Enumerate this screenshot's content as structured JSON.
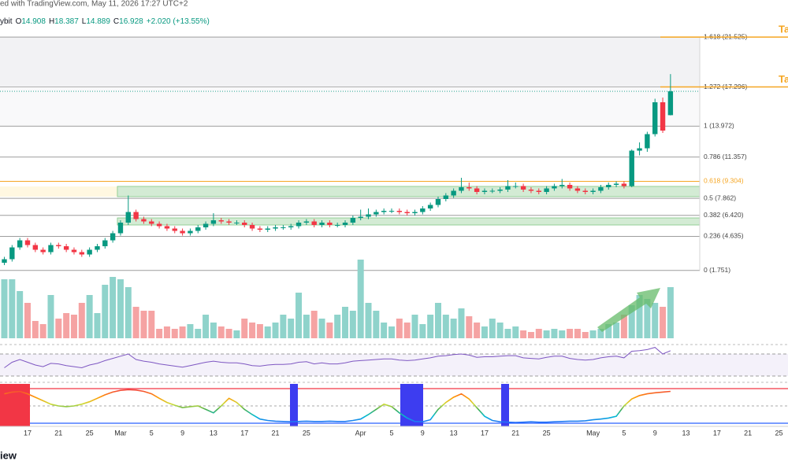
{
  "header": {
    "line1": "ed with TradingView.com, May 11, 2026 17:27 UTC+2",
    "exchange": "ybit",
    "ohlc_letters": [
      "O",
      "H",
      "L",
      "C"
    ],
    "change": "+2.020 (+13.55%)"
  },
  "chart_data": {
    "type": "candlestick",
    "categories": [
      null,
      null,
      null,
      "17",
      null,
      null,
      null,
      "21",
      null,
      null,
      null,
      "25",
      null,
      null,
      null,
      "Mar",
      null,
      null,
      null,
      "5",
      null,
      null,
      null,
      "9",
      null,
      null,
      null,
      "13",
      null,
      null,
      null,
      "17",
      null,
      null,
      null,
      "21",
      null,
      null,
      null,
      "25",
      null,
      null,
      null,
      null,
      null,
      null,
      "Apr",
      null,
      null,
      null,
      "5",
      null,
      null,
      null,
      "9",
      null,
      null,
      null,
      "13",
      null,
      null,
      null,
      "17",
      null,
      null,
      null,
      "21",
      null,
      null,
      null,
      "25",
      null,
      null,
      null,
      null,
      null,
      "May",
      null,
      null,
      null,
      "5",
      null,
      null,
      null,
      "9",
      null,
      null,
      null,
      "13",
      null,
      null,
      null,
      "17",
      null,
      null,
      null,
      "21",
      null,
      null,
      null,
      "25"
    ],
    "ohlc": [
      [
        2.4,
        2.9,
        2.2,
        2.7
      ],
      [
        2.7,
        3.9,
        2.5,
        3.7
      ],
      [
        3.7,
        4.5,
        3.5,
        4.3
      ],
      [
        4.3,
        4.5,
        3.7,
        3.9
      ],
      [
        3.9,
        4.1,
        3.3,
        3.5
      ],
      [
        3.5,
        3.7,
        3.1,
        3.3
      ],
      [
        3.3,
        4.1,
        3.1,
        3.9
      ],
      [
        3.9,
        4.1,
        3.6,
        3.8
      ],
      [
        3.8,
        4.0,
        3.3,
        3.5
      ],
      [
        3.5,
        3.7,
        3.1,
        3.3
      ],
      [
        3.3,
        3.5,
        2.9,
        3.1
      ],
      [
        3.1,
        3.7,
        2.9,
        3.5
      ],
      [
        3.5,
        4.0,
        3.3,
        3.8
      ],
      [
        3.8,
        4.5,
        3.6,
        4.3
      ],
      [
        4.3,
        5.1,
        4.1,
        4.9
      ],
      [
        4.9,
        6.0,
        4.7,
        5.8
      ],
      [
        5.8,
        8.1,
        5.6,
        6.7
      ],
      [
        6.7,
        6.9,
        5.9,
        6.1
      ],
      [
        6.1,
        6.3,
        5.7,
        5.9
      ],
      [
        5.9,
        6.1,
        5.5,
        5.7
      ],
      [
        5.7,
        5.9,
        5.3,
        5.5
      ],
      [
        5.5,
        5.7,
        5.1,
        5.3
      ],
      [
        5.3,
        5.5,
        4.9,
        5.1
      ],
      [
        5.1,
        5.3,
        4.7,
        4.9
      ],
      [
        4.9,
        5.3,
        4.7,
        5.1
      ],
      [
        5.1,
        5.6,
        4.9,
        5.4
      ],
      [
        5.4,
        5.9,
        5.2,
        5.7
      ],
      [
        5.7,
        6.6,
        5.5,
        6.0
      ],
      [
        6.0,
        6.2,
        5.7,
        5.9
      ],
      [
        5.9,
        6.1,
        5.6,
        5.8
      ],
      [
        5.8,
        6.0,
        5.6,
        5.8
      ],
      [
        5.8,
        6.0,
        5.4,
        5.6
      ],
      [
        5.6,
        5.8,
        5.1,
        5.3
      ],
      [
        5.3,
        5.5,
        5.0,
        5.2
      ],
      [
        5.2,
        5.5,
        5.0,
        5.3
      ],
      [
        5.3,
        5.6,
        5.1,
        5.4
      ],
      [
        5.4,
        5.6,
        5.2,
        5.4
      ],
      [
        5.4,
        5.7,
        5.2,
        5.5
      ],
      [
        5.5,
        6.0,
        5.3,
        5.8
      ],
      [
        5.8,
        6.1,
        5.6,
        5.9
      ],
      [
        5.9,
        6.1,
        5.4,
        5.6
      ],
      [
        5.6,
        6.0,
        5.4,
        5.8
      ],
      [
        5.8,
        6.0,
        5.4,
        5.6
      ],
      [
        5.6,
        5.8,
        5.4,
        5.6
      ],
      [
        5.6,
        6.0,
        5.4,
        5.8
      ],
      [
        5.8,
        6.4,
        5.6,
        6.2
      ],
      [
        6.2,
        6.9,
        6.0,
        6.3
      ],
      [
        6.3,
        7.0,
        6.1,
        6.5
      ],
      [
        6.5,
        6.9,
        6.3,
        6.7
      ],
      [
        6.7,
        7.0,
        6.5,
        6.8
      ],
      [
        6.8,
        7.0,
        6.6,
        6.8
      ],
      [
        6.8,
        7.0,
        6.5,
        6.7
      ],
      [
        6.7,
        6.9,
        6.4,
        6.6
      ],
      [
        6.6,
        6.9,
        6.4,
        6.7
      ],
      [
        6.7,
        7.2,
        6.5,
        7.0
      ],
      [
        7.0,
        7.5,
        6.8,
        7.3
      ],
      [
        7.3,
        8.0,
        7.1,
        7.8
      ],
      [
        7.8,
        8.3,
        7.6,
        8.1
      ],
      [
        8.1,
        8.7,
        7.9,
        8.5
      ],
      [
        8.5,
        9.6,
        8.3,
        8.8
      ],
      [
        8.8,
        9.2,
        8.5,
        8.7
      ],
      [
        8.7,
        8.9,
        8.2,
        8.4
      ],
      [
        8.4,
        8.7,
        8.2,
        8.5
      ],
      [
        8.5,
        8.7,
        8.3,
        8.5
      ],
      [
        8.5,
        8.8,
        8.3,
        8.6
      ],
      [
        8.6,
        9.4,
        8.4,
        8.9
      ],
      [
        8.9,
        9.2,
        8.7,
        8.9
      ],
      [
        8.9,
        9.1,
        8.4,
        8.6
      ],
      [
        8.6,
        8.8,
        8.3,
        8.5
      ],
      [
        8.5,
        8.7,
        8.2,
        8.4
      ],
      [
        8.4,
        8.9,
        8.2,
        8.7
      ],
      [
        8.7,
        9.1,
        8.5,
        8.9
      ],
      [
        8.9,
        9.5,
        8.7,
        9.0
      ],
      [
        9.0,
        9.2,
        8.5,
        8.7
      ],
      [
        8.7,
        8.9,
        8.3,
        8.5
      ],
      [
        8.5,
        8.7,
        8.2,
        8.4
      ],
      [
        8.4,
        8.7,
        8.2,
        8.5
      ],
      [
        8.5,
        9.0,
        8.3,
        8.8
      ],
      [
        8.8,
        9.2,
        8.6,
        9.0
      ],
      [
        9.0,
        9.3,
        8.8,
        9.1
      ],
      [
        9.1,
        9.3,
        8.7,
        8.9
      ],
      [
        8.9,
        12.0,
        8.8,
        11.9
      ],
      [
        11.9,
        12.6,
        11.5,
        12.1
      ],
      [
        12.1,
        13.5,
        11.8,
        13.3
      ],
      [
        13.3,
        16.3,
        13.1,
        16.0
      ],
      [
        16.0,
        16.4,
        13.4,
        13.6
      ],
      [
        14.908,
        18.387,
        14.889,
        16.928
      ],
      null,
      null,
      null,
      null,
      null,
      null,
      null,
      null,
      null,
      null,
      null,
      null,
      null,
      null
    ],
    "up_color": "#089981",
    "down_color": "#f23645",
    "ylim": [
      1,
      22
    ],
    "fib": {
      "levels": [
        21.525,
        17.296,
        13.972,
        11.357,
        9.304,
        7.862,
        6.42,
        4.635,
        1.751
      ],
      "labels": [
        "1.618 (21.525)",
        "1.272 (17.296)",
        "1 (13.972)",
        "0.786 (11.357)",
        "0.618 (9.304)",
        "0.5 (7.862)",
        "0.382 (6.420)",
        "0.236 (4.635)",
        "0 (1.751)"
      ],
      "colors": [
        "#9e9e9e",
        "#b0b0b0",
        "#9e9e9e",
        "#9e9e9e",
        "#f5a623",
        "#9e9e9e",
        "#9e9e9e",
        "#9e9e9e",
        "#9e9e9e"
      ]
    },
    "zones": [
      {
        "range": [
          8.0,
          8.87
        ],
        "color": "#c8e6c9"
      },
      {
        "range": [
          5.6,
          6.2
        ],
        "color": "#c8e6c9"
      }
    ],
    "targets": {
      "label": "Ta",
      "values": [
        21.525,
        17.296
      ],
      "color": "#f5a623"
    },
    "volume": {
      "ylim": [
        0,
        110
      ],
      "up_color": "#8fd3cb",
      "down_color": "#f5a3a3",
      "values": [
        75,
        75,
        60,
        45,
        22,
        18,
        55,
        25,
        32,
        30,
        45,
        55,
        32,
        68,
        78,
        75,
        65,
        40,
        35,
        35,
        12,
        15,
        12,
        15,
        18,
        12,
        30,
        20,
        15,
        12,
        10,
        25,
        20,
        18,
        15,
        20,
        30,
        25,
        58,
        30,
        35,
        25,
        20,
        30,
        40,
        35,
        100,
        45,
        35,
        20,
        15,
        25,
        20,
        30,
        18,
        30,
        45,
        30,
        25,
        38,
        28,
        20,
        15,
        25,
        20,
        12,
        15,
        10,
        8,
        12,
        10,
        12,
        10,
        12,
        12,
        8,
        10,
        12,
        18,
        20,
        30,
        42,
        55,
        50,
        45,
        40,
        65,
        null,
        null,
        null,
        null,
        null,
        null,
        null,
        null,
        null,
        null,
        null,
        null,
        null,
        null
      ]
    },
    "rsi": {
      "ylim": [
        20,
        80
      ],
      "bands": [
        70,
        30
      ],
      "color": "#7e57c2",
      "values": [
        45,
        55,
        60,
        55,
        50,
        47,
        53,
        52,
        49,
        47,
        45,
        50,
        53,
        58,
        62,
        66,
        70,
        60,
        57,
        55,
        52,
        50,
        48,
        46,
        49,
        52,
        55,
        57,
        55,
        54,
        54,
        52,
        49,
        48,
        50,
        51,
        51,
        52,
        55,
        56,
        52,
        54,
        52,
        52,
        54,
        57,
        58,
        59,
        60,
        61,
        61,
        59,
        58,
        59,
        61,
        63,
        66,
        67,
        69,
        70,
        68,
        64,
        65,
        65,
        66,
        67,
        67,
        63,
        62,
        61,
        64,
        66,
        66,
        62,
        60,
        59,
        60,
        63,
        65,
        66,
        63,
        75,
        76,
        78,
        82,
        70,
        76,
        null,
        null,
        null,
        null,
        null,
        null,
        null,
        null,
        null,
        null,
        null,
        null,
        null,
        null
      ]
    },
    "oscillator": {
      "ylim": [
        0,
        100
      ],
      "bands": [
        100,
        0
      ],
      "band_colors": [
        "#f23645",
        "#2962ff"
      ],
      "values": [
        85,
        90,
        92,
        85,
        75,
        65,
        55,
        50,
        48,
        50,
        55,
        62,
        72,
        82,
        90,
        95,
        97,
        96,
        92,
        85,
        72,
        60,
        52,
        45,
        48,
        50,
        40,
        30,
        50,
        72,
        60,
        40,
        25,
        12,
        8,
        6,
        5,
        4,
        5,
        6,
        5,
        5,
        6,
        5,
        5,
        8,
        12,
        25,
        40,
        55,
        48,
        30,
        15,
        5,
        4,
        10,
        40,
        60,
        75,
        85,
        70,
        45,
        20,
        8,
        4,
        3,
        2,
        3,
        4,
        3,
        3,
        4,
        5,
        6,
        6,
        7,
        10,
        12,
        15,
        20,
        50,
        70,
        80,
        85,
        88,
        90,
        92,
        null,
        null,
        null,
        null,
        null,
        null,
        null,
        null,
        null,
        null,
        null,
        null,
        null,
        null
      ]
    }
  },
  "footer": "iew"
}
